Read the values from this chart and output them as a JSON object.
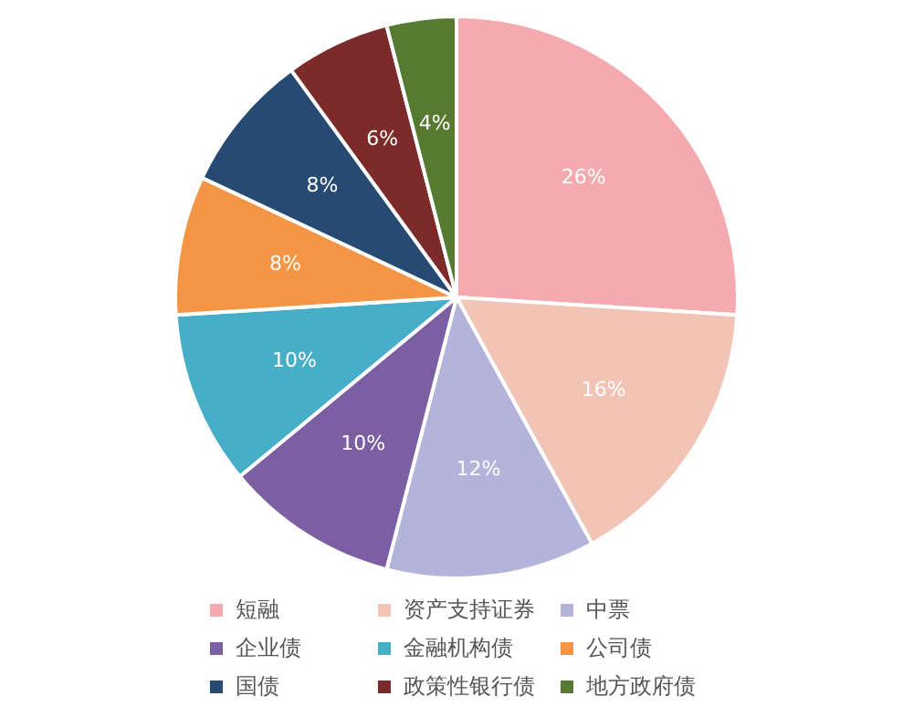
{
  "chart_data": {
    "type": "pie",
    "categories": [
      "短融",
      "资产支持证券",
      "中票",
      "企业债",
      "金融机构债",
      "公司债",
      "国债",
      "政策性银行债",
      "地方政府债"
    ],
    "values": [
      26,
      16,
      12,
      10,
      10,
      8,
      8,
      6,
      4
    ],
    "value_labels": [
      "26%",
      "16%",
      "12%",
      "10%",
      "10%",
      "8%",
      "8%",
      "6%",
      "4%"
    ],
    "colors": [
      "#f4aaae",
      "#f2c4b6",
      "#b3b3db",
      "#7c5fa3",
      "#47aec8",
      "#f49546",
      "#264a72",
      "#7c2a2a",
      "#557a30"
    ],
    "legend": "bottom"
  }
}
